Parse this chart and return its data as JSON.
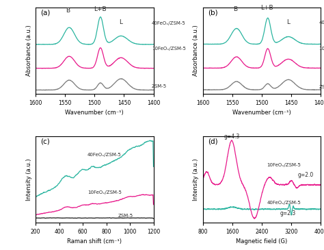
{
  "colors": {
    "teal": "#2bb5a0",
    "magenta": "#e8198b",
    "gray": "#7a7a7a",
    "black": "#1a1a1a",
    "dark": "#2a2a2a"
  },
  "panel_a": {
    "label": "(a)",
    "xlabel": "Wavenumber (cm⁻¹)",
    "ylabel": "Absorbance (a.u.)"
  },
  "panel_b": {
    "label": "(b)",
    "xlabel": "Wavenumber (cm⁻¹)",
    "ylabel": "Absorbance (a.u.)"
  },
  "panel_c": {
    "label": "(c)",
    "xlabel": "Raman shift (cm⁻¹)",
    "ylabel": "Intensity (a.u.)"
  },
  "panel_d": {
    "label": "(d)",
    "xlabel": "Magnetic field (G)",
    "ylabel": "Intensity (a.u.)"
  }
}
